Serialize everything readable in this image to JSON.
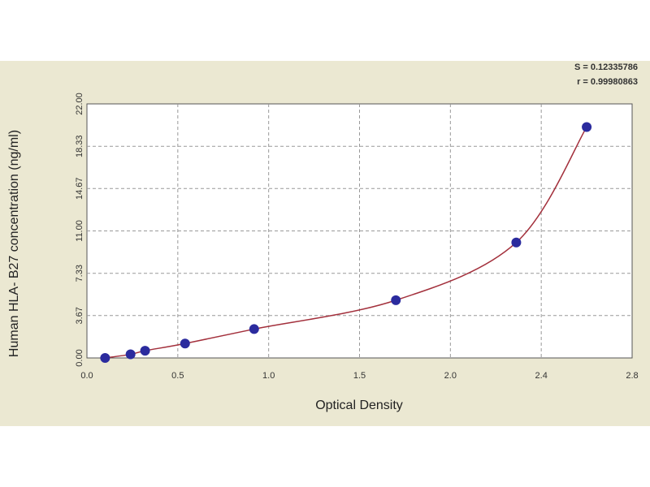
{
  "chart_data": {
    "type": "scatter",
    "xlabel": "Optical Density",
    "ylabel": "Human HLA- B27 concentration (ng/ml)",
    "annotations": [
      "S = 0.12335786",
      "r = 0.99980863"
    ],
    "x": [
      0.1,
      0.24,
      0.32,
      0.54,
      0.92,
      1.7,
      2.29,
      2.6
    ],
    "values": [
      0,
      0.3125,
      0.625,
      1.25,
      2.5,
      5,
      10,
      20
    ],
    "color": "#2b2b9e",
    "line_color": "#a3303c",
    "xlim": [
      0,
      2.8
    ],
    "xticks": [
      {
        "value": 0,
        "label": "0.0"
      },
      0.5,
      {
        "value": 1,
        "label": "1.0"
      },
      1.5,
      {
        "value": 2,
        "label": "2.0"
      },
      2.4,
      2.8
    ],
    "ylim": [
      0,
      22
    ],
    "yticks": [
      {
        "value": 0,
        "label": "0.00"
      },
      {
        "value": 3.67,
        "label": "3.67"
      },
      {
        "value": 7.33,
        "label": "7.33"
      },
      {
        "value": 11,
        "label": "11.00"
      },
      {
        "value": 14.67,
        "label": "14.67"
      },
      {
        "value": 18.33,
        "label": "18.33"
      },
      {
        "value": 22,
        "label": "22.00"
      }
    ],
    "grid": true
  }
}
